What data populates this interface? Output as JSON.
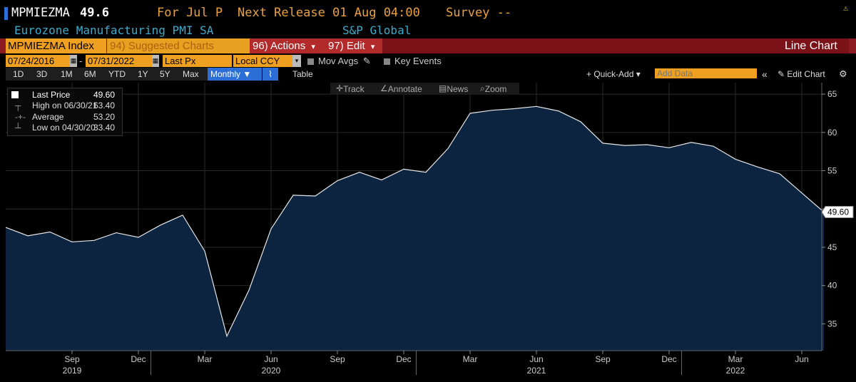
{
  "header": {
    "ticker": "MPMIEZMA",
    "last": "49.6",
    "period": "For Jul P",
    "next_release": "Next Release 01 Aug 04:00",
    "survey": "Survey --",
    "name": "Eurozone Manufacturing PMI SA",
    "source": "S&P Global"
  },
  "toolbar": {
    "security": "MPMIEZMA Index",
    "suggested": "94) Suggested Charts",
    "actions": "96) Actions",
    "actions_caret": "▾",
    "edit": "97) Edit",
    "edit_caret": "▾",
    "chart_type": "Line Chart",
    "start_date": "07/24/2016",
    "end_date": "07/31/2022",
    "date_sep": "-",
    "field": "Last Px",
    "currency": "Local CCY",
    "mov_avgs": "Mov Avgs",
    "key_events": "Key Events",
    "ranges": [
      "1D",
      "3D",
      "1M",
      "6M",
      "YTD",
      "1Y",
      "5Y",
      "Max"
    ],
    "periodicity": "Monthly ▼",
    "table": "Table",
    "quick_add": "+ Quick-Add ▾",
    "add_data_placeholder": "Add Data",
    "edit_chart": "Edit Chart",
    "collapse": "«"
  },
  "chart_tools": {
    "track": "Track",
    "annotate": "Annotate",
    "news": "News",
    "zoom": "Zoom"
  },
  "legend": {
    "last_label": "Last Price",
    "last_value": "49.60",
    "high_label": "High on 06/30/21",
    "high_value": "63.40",
    "avg_label": "Average",
    "avg_value": "53.20",
    "low_label": "Low on 04/30/20",
    "low_value": "33.40"
  },
  "colors": {
    "area_fill": "#0c2440",
    "line": "#e6e6e6",
    "accent_orange": "#f0a020",
    "red_bar": "#8b1a22",
    "header_blue": "#3fa9c9"
  },
  "chart_data": {
    "type": "area",
    "x": [
      "2019-06",
      "2019-07",
      "2019-08",
      "2019-09",
      "2019-10",
      "2019-11",
      "2019-12",
      "2020-01",
      "2020-02",
      "2020-03",
      "2020-04",
      "2020-05",
      "2020-06",
      "2020-07",
      "2020-08",
      "2020-09",
      "2020-10",
      "2020-11",
      "2020-12",
      "2021-01",
      "2021-02",
      "2021-03",
      "2021-04",
      "2021-05",
      "2021-06",
      "2021-07",
      "2021-08",
      "2021-09",
      "2021-10",
      "2021-11",
      "2021-12",
      "2022-01",
      "2022-02",
      "2022-03",
      "2022-04",
      "2022-05",
      "2022-06",
      "2022-07"
    ],
    "series": [
      {
        "values": [
          47.6,
          46.5,
          47.0,
          45.7,
          45.9,
          46.9,
          46.3,
          47.9,
          49.2,
          44.5,
          33.4,
          39.4,
          47.4,
          51.8,
          51.7,
          53.7,
          54.8,
          53.8,
          55.2,
          54.8,
          57.9,
          62.5,
          62.9,
          63.1,
          63.4,
          62.8,
          61.4,
          58.6,
          58.3,
          58.4,
          58.0,
          58.7,
          58.2,
          56.5,
          55.5,
          54.6,
          52.1,
          49.6
        ]
      }
    ],
    "last_label": "49.60",
    "y_ticks": [
      35,
      40,
      45,
      50,
      55,
      60,
      65
    ],
    "ylim": [
      31.5,
      66.5
    ],
    "x_tick_labels": [
      "Sep",
      "Dec",
      "Mar",
      "Jun",
      "Sep",
      "Dec",
      "Mar",
      "Jun",
      "Sep",
      "Dec",
      "Mar",
      "Jun"
    ],
    "x_tick_months": [
      "2019-09",
      "2019-12",
      "2020-03",
      "2020-06",
      "2020-09",
      "2020-12",
      "2021-03",
      "2021-06",
      "2021-09",
      "2021-12",
      "2022-03",
      "2022-06"
    ],
    "year_labels": [
      "2019",
      "2020",
      "2021",
      "2022"
    ],
    "year_label_months": [
      "2019-09",
      "2020-06",
      "2021-06",
      "2022-03"
    ],
    "grid": true
  }
}
